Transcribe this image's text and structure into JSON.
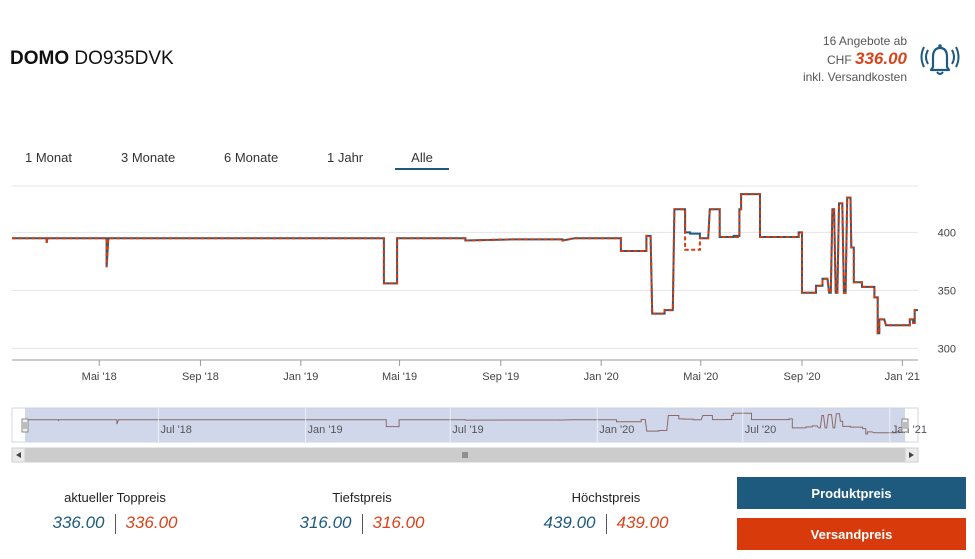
{
  "header": {
    "brand": "DOMO",
    "model": "DO935DVK",
    "offers_line": "16 Angebote ab",
    "currency": "CHF",
    "price": "336.00",
    "shipping_note": "inkl. Versandkosten"
  },
  "tabs": [
    "1 Monat",
    "3 Monate",
    "6 Monate",
    "1 Jahr",
    "Alle"
  ],
  "active_tab": "Alle",
  "stats": [
    {
      "label": "aktueller Toppreis",
      "product": "336.00",
      "shipping": "336.00"
    },
    {
      "label": "Tiefstpreis",
      "product": "316.00",
      "shipping": "316.00"
    },
    {
      "label": "Höchstpreis",
      "product": "439.00",
      "shipping": "439.00"
    }
  ],
  "buttons": {
    "product": "Produktpreis",
    "shipping": "Versandpreis"
  },
  "colors": {
    "product": "#1e5a7e",
    "shipping": "#d93a0c",
    "navigator_fill": "#c9d0e6"
  },
  "chart_data": {
    "type": "line",
    "ylim": [
      290,
      440
    ],
    "yticks": [
      300,
      350,
      400
    ],
    "xlim": [
      "2018-01-15",
      "2021-01-20"
    ],
    "xticks": [
      {
        "date": "2018-05-01",
        "label": "Mai '18"
      },
      {
        "date": "2018-09-01",
        "label": "Sep '18"
      },
      {
        "date": "2019-01-01",
        "label": "Jan '19"
      },
      {
        "date": "2019-05-01",
        "label": "Mai '19"
      },
      {
        "date": "2019-09-01",
        "label": "Sep '19"
      },
      {
        "date": "2020-01-01",
        "label": "Jan '20"
      },
      {
        "date": "2020-05-01",
        "label": "Mai '20"
      },
      {
        "date": "2020-09-01",
        "label": "Sep '20"
      },
      {
        "date": "2021-01-01",
        "label": "Jan '21"
      }
    ],
    "navigator_ticks": [
      {
        "date": "2018-07-01",
        "label": "Jul '18"
      },
      {
        "date": "2019-01-01",
        "label": "Jan '19"
      },
      {
        "date": "2019-07-01",
        "label": "Jul '19"
      },
      {
        "date": "2020-01-01",
        "label": "Jan '20"
      },
      {
        "date": "2020-07-01",
        "label": "Jul '20"
      },
      {
        "date": "2021-01-01",
        "label": "Jan '21"
      }
    ],
    "series": [
      {
        "key": "product",
        "points": [
          [
            "2018-01-15",
            395
          ],
          [
            "2018-02-26",
            395
          ],
          [
            "2018-02-26",
            391
          ],
          [
            "2018-02-27",
            395
          ],
          [
            "2018-05-10",
            395
          ],
          [
            "2018-05-10",
            370
          ],
          [
            "2018-05-12",
            395
          ],
          [
            "2019-04-12",
            395
          ],
          [
            "2019-04-12",
            356
          ],
          [
            "2019-04-28",
            356
          ],
          [
            "2019-04-28",
            395
          ],
          [
            "2019-07-20",
            395
          ],
          [
            "2019-07-20",
            393
          ],
          [
            "2019-09-15",
            394
          ],
          [
            "2019-10-20",
            394
          ],
          [
            "2019-11-15",
            394
          ],
          [
            "2019-11-15",
            393
          ],
          [
            "2019-11-30",
            395
          ],
          [
            "2020-01-25",
            395
          ],
          [
            "2020-01-25",
            384
          ],
          [
            "2020-02-25",
            384
          ],
          [
            "2020-02-25",
            397
          ],
          [
            "2020-03-01",
            397
          ],
          [
            "2020-03-03",
            330
          ],
          [
            "2020-03-18",
            330
          ],
          [
            "2020-03-18",
            333
          ],
          [
            "2020-03-28",
            333
          ],
          [
            "2020-03-30",
            420
          ],
          [
            "2020-04-12",
            420
          ],
          [
            "2020-04-12",
            400
          ],
          [
            "2020-04-18",
            400
          ],
          [
            "2020-04-18",
            399
          ],
          [
            "2020-04-30",
            399
          ],
          [
            "2020-04-30",
            395
          ],
          [
            "2020-05-10",
            395
          ],
          [
            "2020-05-12",
            420
          ],
          [
            "2020-05-24",
            420
          ],
          [
            "2020-05-24",
            396
          ],
          [
            "2020-06-07",
            396
          ],
          [
            "2020-06-07",
            396
          ],
          [
            "2020-06-10",
            396
          ],
          [
            "2020-06-10",
            397
          ],
          [
            "2020-06-17",
            397
          ],
          [
            "2020-06-17",
            420
          ],
          [
            "2020-06-19",
            420
          ],
          [
            "2020-06-19",
            433
          ],
          [
            "2020-07-12",
            433
          ],
          [
            "2020-07-12",
            396
          ],
          [
            "2020-08-28",
            396
          ],
          [
            "2020-08-28",
            400
          ],
          [
            "2020-09-01",
            400
          ],
          [
            "2020-09-01",
            348
          ],
          [
            "2020-09-18",
            348
          ],
          [
            "2020-09-18",
            354
          ],
          [
            "2020-09-26",
            354
          ],
          [
            "2020-09-26",
            360
          ],
          [
            "2020-10-02",
            360
          ],
          [
            "2020-10-04",
            348
          ],
          [
            "2020-10-06",
            348
          ],
          [
            "2020-10-08",
            420
          ],
          [
            "2020-10-10",
            420
          ],
          [
            "2020-10-12",
            348
          ],
          [
            "2020-10-14",
            348
          ],
          [
            "2020-10-16",
            425
          ],
          [
            "2020-10-20",
            425
          ],
          [
            "2020-10-22",
            348
          ],
          [
            "2020-10-24",
            348
          ],
          [
            "2020-10-26",
            430
          ],
          [
            "2020-10-30",
            430
          ],
          [
            "2020-10-31",
            387
          ],
          [
            "2020-11-03",
            387
          ],
          [
            "2020-11-03",
            357
          ],
          [
            "2020-11-13",
            357
          ],
          [
            "2020-11-13",
            353
          ],
          [
            "2020-11-28",
            353
          ],
          [
            "2020-11-28",
            344
          ],
          [
            "2020-12-02",
            344
          ],
          [
            "2020-12-02",
            313
          ],
          [
            "2020-12-04",
            313
          ],
          [
            "2020-12-04",
            325
          ],
          [
            "2020-12-10",
            325
          ],
          [
            "2020-12-12",
            320
          ],
          [
            "2021-01-10",
            320
          ],
          [
            "2021-01-10",
            325
          ],
          [
            "2021-01-14",
            325
          ],
          [
            "2021-01-14",
            322
          ],
          [
            "2021-01-16",
            322
          ],
          [
            "2021-01-16",
            333
          ],
          [
            "2021-01-20",
            333
          ]
        ]
      },
      {
        "key": "shipping",
        "points": [
          [
            "2018-01-15",
            395
          ],
          [
            "2018-02-26",
            395
          ],
          [
            "2018-02-26",
            391
          ],
          [
            "2018-02-27",
            395
          ],
          [
            "2018-05-10",
            395
          ],
          [
            "2018-05-10",
            370
          ],
          [
            "2018-05-12",
            395
          ],
          [
            "2019-04-12",
            395
          ],
          [
            "2019-04-12",
            356
          ],
          [
            "2019-04-28",
            356
          ],
          [
            "2019-04-28",
            395
          ],
          [
            "2019-07-20",
            395
          ],
          [
            "2019-07-20",
            393
          ],
          [
            "2019-09-15",
            394
          ],
          [
            "2019-10-20",
            394
          ],
          [
            "2019-11-15",
            394
          ],
          [
            "2019-11-15",
            393
          ],
          [
            "2019-11-30",
            395
          ],
          [
            "2020-01-25",
            395
          ],
          [
            "2020-01-25",
            384
          ],
          [
            "2020-02-25",
            384
          ],
          [
            "2020-02-25",
            397
          ],
          [
            "2020-03-01",
            397
          ],
          [
            "2020-03-03",
            330
          ],
          [
            "2020-03-18",
            330
          ],
          [
            "2020-03-18",
            333
          ],
          [
            "2020-03-28",
            333
          ],
          [
            "2020-03-30",
            420
          ],
          [
            "2020-04-12",
            420
          ],
          [
            "2020-04-12",
            385
          ],
          [
            "2020-04-30",
            385
          ],
          [
            "2020-04-30",
            395
          ],
          [
            "2020-05-10",
            395
          ],
          [
            "2020-05-12",
            420
          ],
          [
            "2020-05-24",
            420
          ],
          [
            "2020-05-24",
            396
          ],
          [
            "2020-06-17",
            396
          ],
          [
            "2020-06-17",
            420
          ],
          [
            "2020-06-19",
            420
          ],
          [
            "2020-06-19",
            433
          ],
          [
            "2020-07-12",
            433
          ],
          [
            "2020-07-12",
            396
          ],
          [
            "2020-08-28",
            396
          ],
          [
            "2020-08-28",
            400
          ],
          [
            "2020-09-01",
            400
          ],
          [
            "2020-09-01",
            348
          ],
          [
            "2020-09-18",
            348
          ],
          [
            "2020-09-18",
            354
          ],
          [
            "2020-09-26",
            354
          ],
          [
            "2020-09-26",
            360
          ],
          [
            "2020-10-02",
            360
          ],
          [
            "2020-10-04",
            348
          ],
          [
            "2020-10-06",
            348
          ],
          [
            "2020-10-08",
            420
          ],
          [
            "2020-10-10",
            420
          ],
          [
            "2020-10-12",
            348
          ],
          [
            "2020-10-14",
            348
          ],
          [
            "2020-10-16",
            425
          ],
          [
            "2020-10-20",
            425
          ],
          [
            "2020-10-22",
            348
          ],
          [
            "2020-10-24",
            348
          ],
          [
            "2020-10-26",
            430
          ],
          [
            "2020-10-30",
            430
          ],
          [
            "2020-10-31",
            387
          ],
          [
            "2020-11-03",
            387
          ],
          [
            "2020-11-03",
            357
          ],
          [
            "2020-11-13",
            357
          ],
          [
            "2020-11-13",
            353
          ],
          [
            "2020-11-28",
            353
          ],
          [
            "2020-11-28",
            344
          ],
          [
            "2020-12-02",
            344
          ],
          [
            "2020-12-02",
            313
          ],
          [
            "2020-12-04",
            313
          ],
          [
            "2020-12-04",
            325
          ],
          [
            "2020-12-10",
            325
          ],
          [
            "2020-12-12",
            320
          ],
          [
            "2021-01-10",
            320
          ],
          [
            "2021-01-10",
            325
          ],
          [
            "2021-01-14",
            325
          ],
          [
            "2021-01-14",
            322
          ],
          [
            "2021-01-16",
            322
          ],
          [
            "2021-01-16",
            333
          ],
          [
            "2021-01-20",
            333
          ]
        ]
      }
    ]
  }
}
